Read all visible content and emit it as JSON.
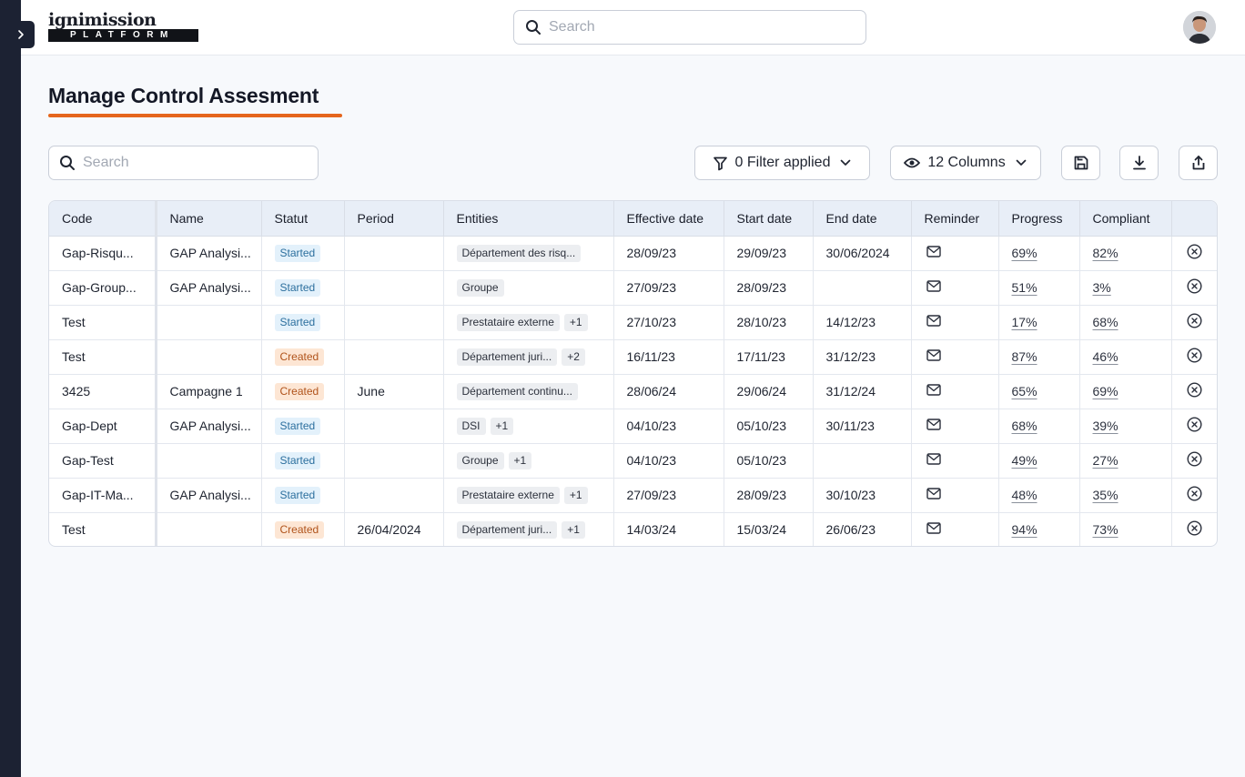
{
  "app": {
    "logo_word": "ignimission",
    "logo_tagline": "PLATFORM"
  },
  "header": {
    "search_placeholder": "Search"
  },
  "page": {
    "title": "Manage Control Assesment"
  },
  "toolbar": {
    "search_placeholder": "Search",
    "filter_label": "0 Filter applied",
    "columns_label": "12 Columns"
  },
  "table": {
    "columns": [
      "Code",
      "Name",
      "Statut",
      "Period",
      "Entities",
      "Effective date",
      "Start date",
      "End date",
      "Reminder",
      "Progress",
      "Compliant",
      ""
    ],
    "rows": [
      {
        "code": "Gap-Risqu...",
        "name": "GAP Analysi...",
        "status": "Started",
        "period": "",
        "entities": [
          "Département des risq..."
        ],
        "effective": "28/09/23",
        "start": "29/09/23",
        "end": "30/06/2024",
        "progress": "69%",
        "compliant": "82%"
      },
      {
        "code": "Gap-Group...",
        "name": "GAP Analysi...",
        "status": "Started",
        "period": "",
        "entities": [
          "Groupe"
        ],
        "effective": "27/09/23",
        "start": "28/09/23",
        "end": "",
        "progress": "51%",
        "compliant": "3%"
      },
      {
        "code": "Test",
        "name": "",
        "status": "Started",
        "period": "",
        "entities": [
          "Prestataire externe",
          "+1"
        ],
        "effective": "27/10/23",
        "start": "28/10/23",
        "end": "14/12/23",
        "progress": "17%",
        "compliant": "68%"
      },
      {
        "code": "Test",
        "name": "",
        "status": "Created",
        "period": "",
        "entities": [
          "Département juri...",
          "+2"
        ],
        "effective": "16/11/23",
        "start": "17/11/23",
        "end": "31/12/23",
        "progress": "87%",
        "compliant": "46%"
      },
      {
        "code": "3425",
        "name": "Campagne 1",
        "status": "Created",
        "period": "June",
        "entities": [
          "Département continu..."
        ],
        "effective": "28/06/24",
        "start": "29/06/24",
        "end": "31/12/24",
        "progress": "65%",
        "compliant": "69%"
      },
      {
        "code": "Gap-Dept",
        "name": "GAP Analysi...",
        "status": "Started",
        "period": "",
        "entities": [
          "DSI",
          "+1"
        ],
        "effective": "04/10/23",
        "start": "05/10/23",
        "end": "30/11/23",
        "progress": "68%",
        "compliant": "39%"
      },
      {
        "code": "Gap-Test",
        "name": "",
        "status": "Started",
        "period": "",
        "entities": [
          "Groupe",
          "+1"
        ],
        "effective": "04/10/23",
        "start": "05/10/23",
        "end": "",
        "progress": "49%",
        "compliant": "27%"
      },
      {
        "code": "Gap-IT-Ma...",
        "name": "GAP Analysi...",
        "status": "Started",
        "period": "",
        "entities": [
          "Prestataire externe",
          "+1"
        ],
        "effective": "27/09/23",
        "start": "28/09/23",
        "end": "30/10/23",
        "progress": "48%",
        "compliant": "35%"
      },
      {
        "code": "Test",
        "name": "",
        "status": "Created",
        "period": "26/04/2024",
        "entities": [
          "Département juri...",
          "+1"
        ],
        "effective": "14/03/24",
        "start": "15/03/24",
        "end": "26/06/23",
        "progress": "94%",
        "compliant": "73%"
      }
    ]
  },
  "icons": {
    "sidebar_toggle": "chevron-right-icon",
    "search": "search-icon",
    "filter": "filter-icon",
    "columns": "eye-icon",
    "dropdown": "chevron-down-icon",
    "save": "save-icon",
    "download": "download-icon",
    "share": "share-icon",
    "reminder": "mail-icon",
    "remove": "close-circle-icon"
  },
  "colors": {
    "accent": "#e5661d",
    "sidebar": "#1c2233",
    "started_bg": "#e3f1fb",
    "started_text": "#2c6f9e",
    "created_bg": "#fde6d4",
    "created_text": "#b0531b"
  }
}
